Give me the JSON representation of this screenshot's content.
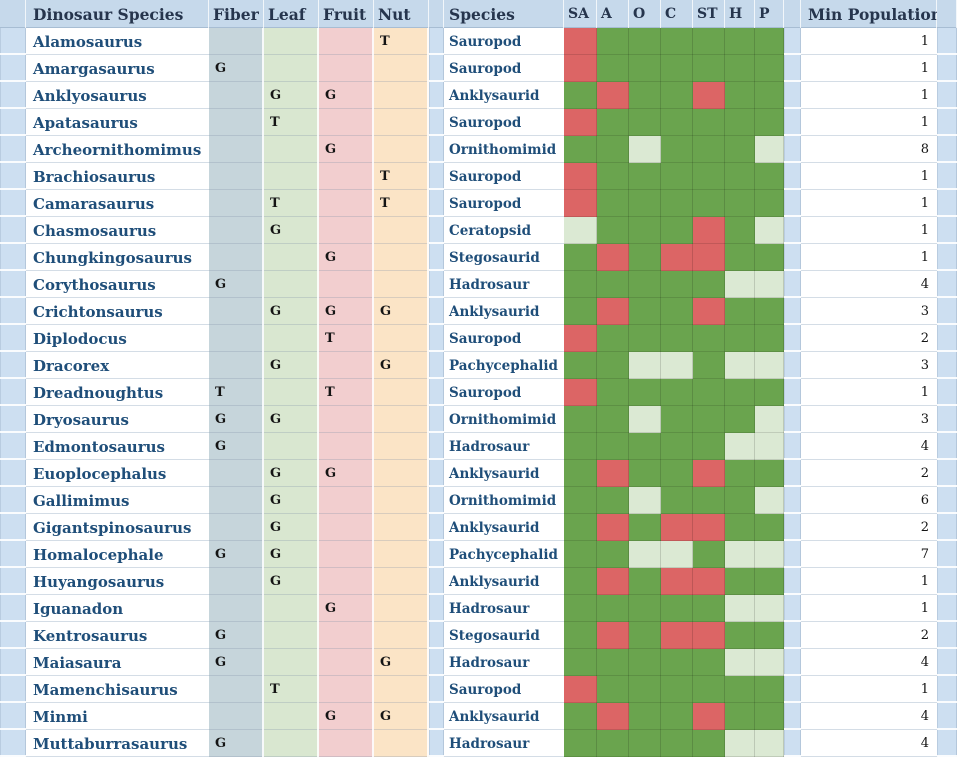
{
  "table": {
    "headers": {
      "dinosaur_species": "Dinosaur Species",
      "fiber": "Fiber",
      "leaf": "Leaf",
      "fruit": "Fruit",
      "nut": "Nut",
      "species": "Species",
      "matrix": [
        "SA",
        "A",
        "O",
        "C",
        "ST",
        "H",
        "P"
      ],
      "min_population": "Min Population"
    },
    "rows": [
      {
        "name": "Alamosaurus",
        "fiber": "",
        "leaf": "",
        "fruit": "",
        "nut": "T",
        "species": "Sauropod",
        "matrix": [
          "r",
          "g",
          "g",
          "g",
          "g",
          "g",
          "g"
        ],
        "min_population": "1"
      },
      {
        "name": "Amargasaurus",
        "fiber": "G",
        "leaf": "",
        "fruit": "",
        "nut": "",
        "species": "Sauropod",
        "matrix": [
          "r",
          "g",
          "g",
          "g",
          "g",
          "g",
          "g"
        ],
        "min_population": "1"
      },
      {
        "name": "Anklyosaurus",
        "fiber": "",
        "leaf": "G",
        "fruit": "G",
        "nut": "",
        "species": "Anklysaurid",
        "matrix": [
          "g",
          "r",
          "g",
          "g",
          "r",
          "g",
          "g"
        ],
        "min_population": "1"
      },
      {
        "name": "Apatasaurus",
        "fiber": "",
        "leaf": "T",
        "fruit": "",
        "nut": "",
        "species": "Sauropod",
        "matrix": [
          "r",
          "g",
          "g",
          "g",
          "g",
          "g",
          "g"
        ],
        "min_population": "1"
      },
      {
        "name": "Archeornithomimus",
        "fiber": "",
        "leaf": "",
        "fruit": "G",
        "nut": "",
        "species": "Ornithomimid",
        "matrix": [
          "g",
          "g",
          "p",
          "g",
          "g",
          "g",
          "p"
        ],
        "min_population": "8"
      },
      {
        "name": "Brachiosaurus",
        "fiber": "",
        "leaf": "",
        "fruit": "",
        "nut": "T",
        "species": "Sauropod",
        "matrix": [
          "r",
          "g",
          "g",
          "g",
          "g",
          "g",
          "g"
        ],
        "min_population": "1"
      },
      {
        "name": "Camarasaurus",
        "fiber": "",
        "leaf": "T",
        "fruit": "",
        "nut": "T",
        "species": "Sauropod",
        "matrix": [
          "r",
          "g",
          "g",
          "g",
          "g",
          "g",
          "g"
        ],
        "min_population": "1"
      },
      {
        "name": "Chasmosaurus",
        "fiber": "",
        "leaf": "G",
        "fruit": "",
        "nut": "",
        "species": "Ceratopsid",
        "matrix": [
          "p",
          "g",
          "g",
          "g",
          "r",
          "g",
          "p"
        ],
        "min_population": "1"
      },
      {
        "name": "Chungkingosaurus",
        "fiber": "",
        "leaf": "",
        "fruit": "G",
        "nut": "",
        "species": "Stegosaurid",
        "matrix": [
          "g",
          "r",
          "g",
          "r",
          "r",
          "g",
          "g"
        ],
        "min_population": "1"
      },
      {
        "name": "Corythosaurus",
        "fiber": "G",
        "leaf": "",
        "fruit": "",
        "nut": "",
        "species": "Hadrosaur",
        "matrix": [
          "g",
          "g",
          "g",
          "g",
          "g",
          "p",
          "p"
        ],
        "min_population": "4"
      },
      {
        "name": "Crichtonsaurus",
        "fiber": "",
        "leaf": "G",
        "fruit": "G",
        "nut": "G",
        "species": "Anklysaurid",
        "matrix": [
          "g",
          "r",
          "g",
          "g",
          "r",
          "g",
          "g"
        ],
        "min_population": "3"
      },
      {
        "name": "Diplodocus",
        "fiber": "",
        "leaf": "",
        "fruit": "T",
        "nut": "",
        "species": "Sauropod",
        "matrix": [
          "r",
          "g",
          "g",
          "g",
          "g",
          "g",
          "g"
        ],
        "min_population": "2"
      },
      {
        "name": "Dracorex",
        "fiber": "",
        "leaf": "G",
        "fruit": "",
        "nut": "G",
        "species": "Pachycephalid",
        "matrix": [
          "g",
          "g",
          "p",
          "p",
          "g",
          "p",
          "p"
        ],
        "min_population": "3"
      },
      {
        "name": "Dreadnoughtus",
        "fiber": "T",
        "leaf": "",
        "fruit": "T",
        "nut": "",
        "species": "Sauropod",
        "matrix": [
          "r",
          "g",
          "g",
          "g",
          "g",
          "g",
          "g"
        ],
        "min_population": "1"
      },
      {
        "name": "Dryosaurus",
        "fiber": "G",
        "leaf": "G",
        "fruit": "",
        "nut": "",
        "species": "Ornithomimid",
        "matrix": [
          "g",
          "g",
          "p",
          "g",
          "g",
          "g",
          "p"
        ],
        "min_population": "3"
      },
      {
        "name": "Edmontosaurus",
        "fiber": "G",
        "leaf": "",
        "fruit": "",
        "nut": "",
        "species": "Hadrosaur",
        "matrix": [
          "g",
          "g",
          "g",
          "g",
          "g",
          "p",
          "p"
        ],
        "min_population": "4"
      },
      {
        "name": "Euoplocephalus",
        "fiber": "",
        "leaf": "G",
        "fruit": "G",
        "nut": "",
        "species": "Anklysaurid",
        "matrix": [
          "g",
          "r",
          "g",
          "g",
          "r",
          "g",
          "g"
        ],
        "min_population": "2"
      },
      {
        "name": "Gallimimus",
        "fiber": "",
        "leaf": "G",
        "fruit": "",
        "nut": "",
        "species": "Ornithomimid",
        "matrix": [
          "g",
          "g",
          "p",
          "g",
          "g",
          "g",
          "p"
        ],
        "min_population": "6"
      },
      {
        "name": "Gigantspinosaurus",
        "fiber": "",
        "leaf": "G",
        "fruit": "",
        "nut": "",
        "species": "Anklysaurid",
        "matrix": [
          "g",
          "r",
          "g",
          "r",
          "r",
          "g",
          "g"
        ],
        "min_population": "2"
      },
      {
        "name": "Homalocephale",
        "fiber": "G",
        "leaf": "G",
        "fruit": "",
        "nut": "",
        "species": "Pachycephalid",
        "matrix": [
          "g",
          "g",
          "p",
          "p",
          "g",
          "p",
          "p"
        ],
        "min_population": "7"
      },
      {
        "name": "Huyangosaurus",
        "fiber": "",
        "leaf": "G",
        "fruit": "",
        "nut": "",
        "species": "Anklysaurid",
        "matrix": [
          "g",
          "r",
          "g",
          "r",
          "r",
          "g",
          "g"
        ],
        "min_population": "1"
      },
      {
        "name": "Iguanadon",
        "fiber": "",
        "leaf": "",
        "fruit": "G",
        "nut": "",
        "species": "Hadrosaur",
        "matrix": [
          "g",
          "g",
          "g",
          "g",
          "g",
          "p",
          "p"
        ],
        "min_population": "1"
      },
      {
        "name": "Kentrosaurus",
        "fiber": "G",
        "leaf": "",
        "fruit": "",
        "nut": "",
        "species": "Stegosaurid",
        "matrix": [
          "g",
          "r",
          "g",
          "r",
          "r",
          "g",
          "g"
        ],
        "min_population": "2"
      },
      {
        "name": "Maiasaura",
        "fiber": "G",
        "leaf": "",
        "fruit": "",
        "nut": "G",
        "species": "Hadrosaur",
        "matrix": [
          "g",
          "g",
          "g",
          "g",
          "g",
          "p",
          "p"
        ],
        "min_population": "4"
      },
      {
        "name": "Mamenchisaurus",
        "fiber": "",
        "leaf": "T",
        "fruit": "",
        "nut": "",
        "species": "Sauropod",
        "matrix": [
          "r",
          "g",
          "g",
          "g",
          "g",
          "g",
          "g"
        ],
        "min_population": "1"
      },
      {
        "name": "Minmi",
        "fiber": "",
        "leaf": "",
        "fruit": "G",
        "nut": "G",
        "species": "Anklysaurid",
        "matrix": [
          "g",
          "r",
          "g",
          "g",
          "r",
          "g",
          "g"
        ],
        "min_population": "4"
      },
      {
        "name": "Muttaburrasaurus",
        "fiber": "G",
        "leaf": "",
        "fruit": "",
        "nut": "",
        "species": "Hadrosaur",
        "matrix": [
          "g",
          "g",
          "g",
          "g",
          "g",
          "p",
          "p"
        ],
        "min_population": "4"
      }
    ]
  },
  "colors": {
    "header_bg": "#c6d9eb",
    "strip_bg": "#cddff1",
    "header_text": "#26354d",
    "name_text": "#1f4e79",
    "value_text": "#141414",
    "fiber_bg": "#c6d5db",
    "leaf_bg": "#d9e7d0",
    "fruit_bg": "#f2cecf",
    "nut_bg": "#fbe4c6",
    "matrix_states": {
      "g": "#6aa44e",
      "r": "#dc6565",
      "p": "#dbe9d3"
    }
  }
}
